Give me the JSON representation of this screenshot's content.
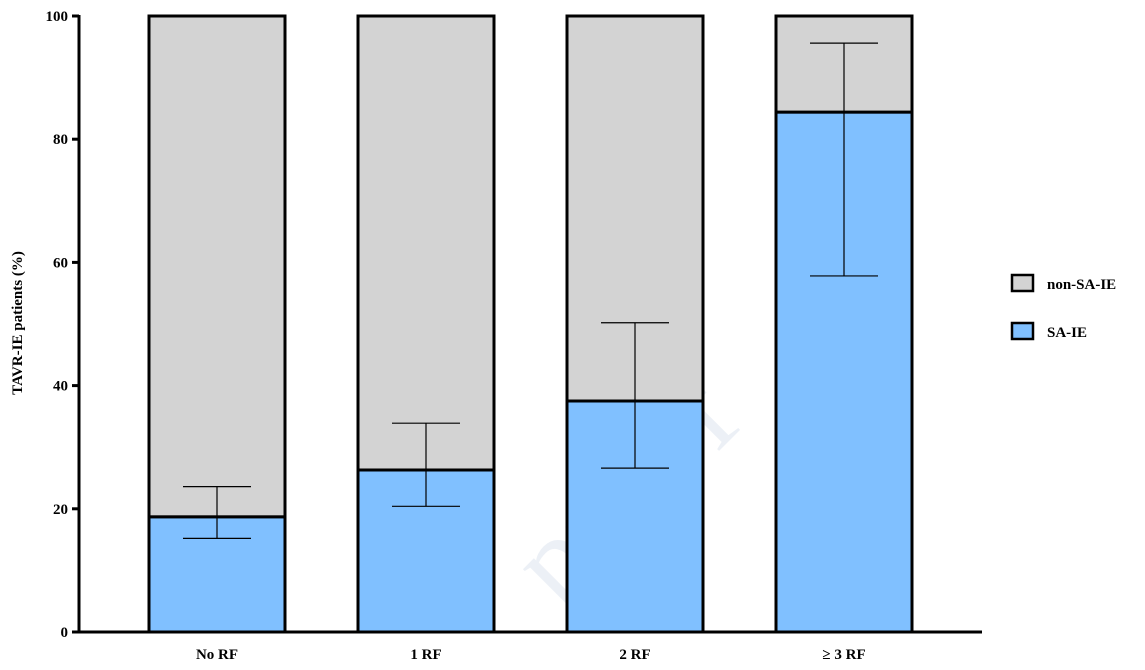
{
  "chart_data": {
    "type": "bar",
    "stacked": true,
    "categories": [
      "No RF",
      "1 RF",
      "2 RF",
      "≥ 3 RF"
    ],
    "series": [
      {
        "name": "SA-IE",
        "values": [
          18.7,
          26.3,
          37.5,
          84.4
        ],
        "error_low": [
          15.2,
          20.4,
          26.6,
          57.8
        ],
        "error_high": [
          23.6,
          33.9,
          50.2,
          95.6
        ],
        "color": "#80c0ff"
      },
      {
        "name": "non-SA-IE",
        "values": [
          81.3,
          73.7,
          62.5,
          15.6
        ],
        "color": "#d3d3d3"
      }
    ],
    "ylabel": "TAVR-IE patients (%)",
    "xlabel": "",
    "ylim": [
      0,
      100
    ],
    "yticks": [
      0,
      20,
      40,
      60,
      80,
      100
    ],
    "legend": [
      {
        "label": "non-SA-IE",
        "color": "#d3d3d3"
      },
      {
        "label": "SA-IE",
        "color": "#80c0ff"
      }
    ],
    "legend_position": "right",
    "grid": false,
    "watermark": "proof"
  }
}
